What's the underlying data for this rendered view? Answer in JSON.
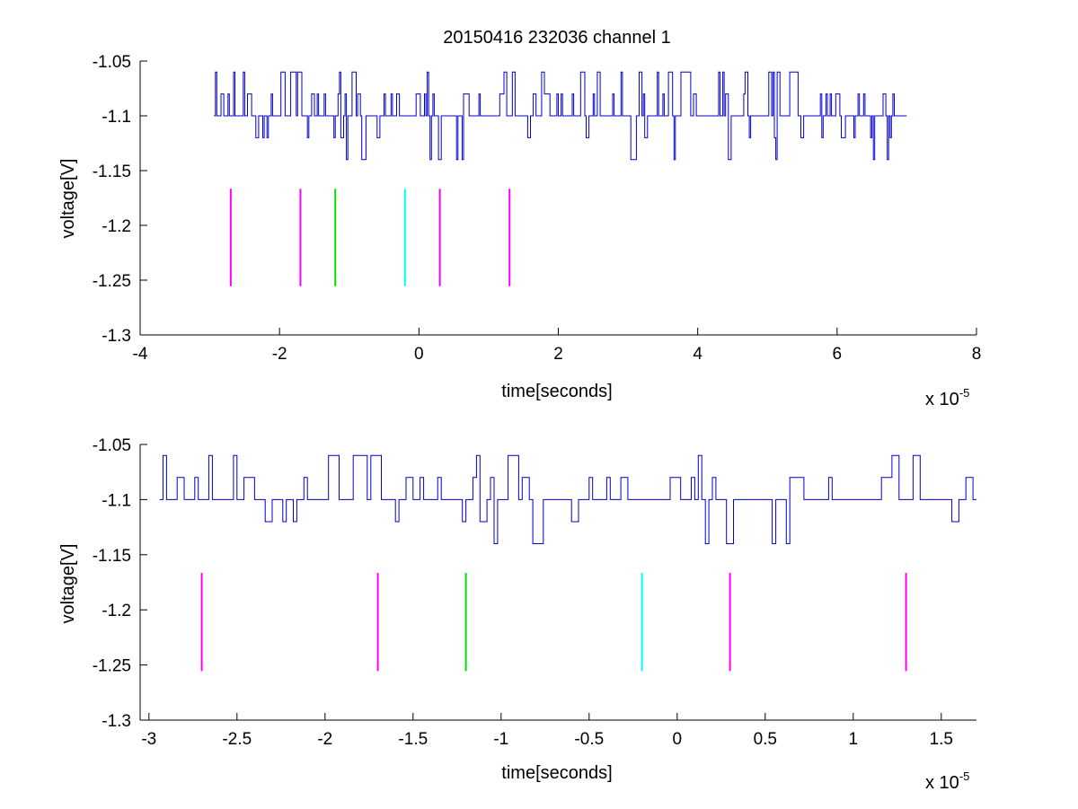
{
  "colors": {
    "signal": "#0000cc",
    "magenta": "#ff00ff",
    "green": "#00dd00",
    "cyan": "#00ffff",
    "axes": "#000000",
    "background": "#ffffff"
  },
  "chart_data": [
    {
      "type": "line",
      "title": "20150416 232036 channel 1",
      "xlabel": "time[seconds]",
      "ylabel": "voltage[V]",
      "x_exponent_base": "x 10",
      "x_exponent_power": "-5",
      "xlim": [
        -4e-05,
        8e-05
      ],
      "ylim": [
        -1.3,
        -1.05
      ],
      "xticks": [
        -4e-05,
        -2e-05,
        0,
        2e-05,
        4e-05,
        6e-05,
        8e-05
      ],
      "xtick_labels": [
        "-4",
        "-2",
        "0",
        "2",
        "4",
        "6",
        "8"
      ],
      "yticks": [
        -1.3,
        -1.25,
        -1.2,
        -1.15,
        -1.1,
        -1.05
      ],
      "ytick_labels": [
        "-1.3",
        "-1.25",
        "-1.2",
        "-1.15",
        "-1.1",
        "-1.05"
      ],
      "grid": false,
      "series": [
        {
          "color": "#0000cc",
          "x_start": -2.94e-05,
          "x_end": 7e-05,
          "baseline": -1.1,
          "levels": [
            -1.06,
            -1.08,
            -1.1,
            -1.12,
            -1.14
          ],
          "seed": 1,
          "step": 2e-07
        }
      ],
      "markers": [
        {
          "x": -2.7e-05,
          "color": "#ff00ff",
          "y_top": -1.1666,
          "y_bottom": -1.2555
        },
        {
          "x": -1.7e-05,
          "color": "#ff00ff",
          "y_top": -1.1666,
          "y_bottom": -1.2555
        },
        {
          "x": -1.2e-05,
          "color": "#00dd00",
          "y_top": -1.1666,
          "y_bottom": -1.2555
        },
        {
          "x": -2e-06,
          "color": "#00ffff",
          "y_top": -1.1666,
          "y_bottom": -1.2555
        },
        {
          "x": 3e-06,
          "color": "#ff00ff",
          "y_top": -1.1666,
          "y_bottom": -1.2555
        },
        {
          "x": 1.3e-05,
          "color": "#ff00ff",
          "y_top": -1.1666,
          "y_bottom": -1.2555
        }
      ]
    },
    {
      "type": "line",
      "title": "",
      "xlabel": "time[seconds]",
      "ylabel": "voltage[V]",
      "x_exponent_base": "x 10",
      "x_exponent_power": "-5",
      "xlim": [
        -3.05e-05,
        1.7e-05
      ],
      "ylim": [
        -1.3,
        -1.05
      ],
      "xticks": [
        -3e-05,
        -2.5e-05,
        -2e-05,
        -1.5e-05,
        -1e-05,
        -5e-06,
        0,
        5e-06,
        1e-05,
        1.5e-05
      ],
      "xtick_labels": [
        "-3",
        "-2.5",
        "-2",
        "-1.5",
        "-1",
        "-0.5",
        "0",
        "0.5",
        "1",
        "1.5"
      ],
      "yticks": [
        -1.3,
        -1.25,
        -1.2,
        -1.15,
        -1.1,
        -1.05
      ],
      "ytick_labels": [
        "-1.3",
        "-1.25",
        "-1.2",
        "-1.15",
        "-1.1",
        "-1.05"
      ],
      "grid": false,
      "series": [
        {
          "color": "#0000cc",
          "x_start": -2.94e-05,
          "x_end": 1.7e-05,
          "baseline": -1.1,
          "levels": [
            -1.06,
            -1.08,
            -1.1,
            -1.12,
            -1.14
          ],
          "seed": 1,
          "step": 2e-07
        }
      ],
      "markers": [
        {
          "x": -2.7e-05,
          "color": "#ff00ff",
          "y_top": -1.1666,
          "y_bottom": -1.2555
        },
        {
          "x": -1.7e-05,
          "color": "#ff00ff",
          "y_top": -1.1666,
          "y_bottom": -1.2555
        },
        {
          "x": -1.2e-05,
          "color": "#00dd00",
          "y_top": -1.1666,
          "y_bottom": -1.2555
        },
        {
          "x": -2e-06,
          "color": "#00ffff",
          "y_top": -1.1666,
          "y_bottom": -1.2555
        },
        {
          "x": 3e-06,
          "color": "#ff00ff",
          "y_top": -1.1666,
          "y_bottom": -1.2555
        },
        {
          "x": 1.3e-05,
          "color": "#ff00ff",
          "y_top": -1.1666,
          "y_bottom": -1.2555
        }
      ]
    }
  ]
}
